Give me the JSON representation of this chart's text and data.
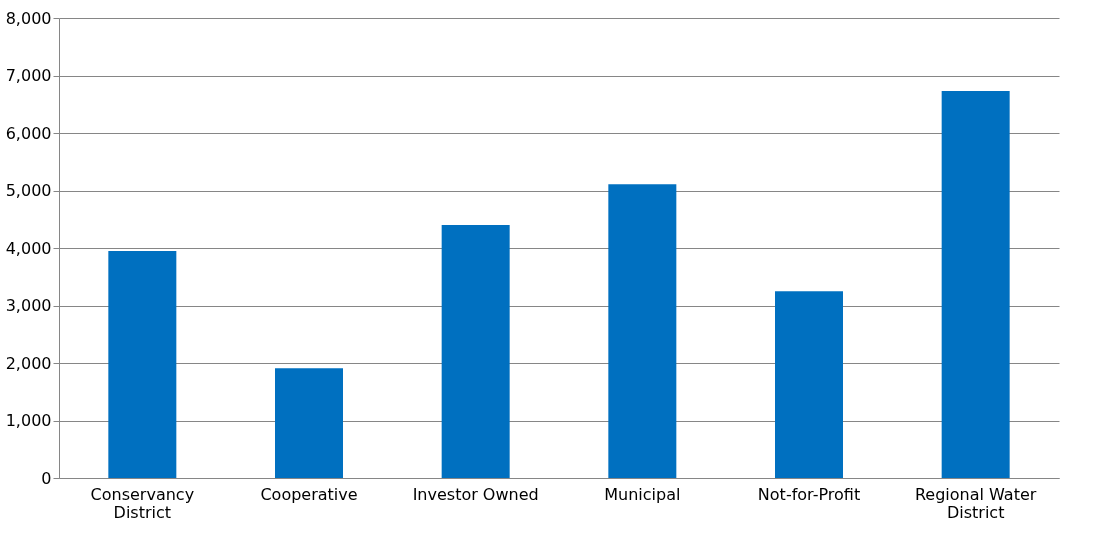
{
  "chart_data": {
    "type": "bar",
    "categories": [
      "Conservancy District",
      "Cooperative",
      "Investor Owned",
      "Municipal",
      "Not-for-Profit",
      "Regional Water District"
    ],
    "values": [
      3950,
      1910,
      4400,
      5110,
      3250,
      6730
    ],
    "color": "#0070c0",
    "ylim": [
      0,
      8000
    ],
    "yticks": [
      0,
      {
        "value": 1000,
        "label": "1,000"
      },
      {
        "value": 2000,
        "label": "2,000"
      },
      {
        "value": 3000,
        "label": "3,000"
      },
      {
        "value": 4000,
        "label": "4,000"
      },
      {
        "value": 5000,
        "label": "5,000"
      },
      {
        "value": 6000,
        "label": "6,000"
      },
      {
        "value": 7000,
        "label": "7,000"
      },
      {
        "value": 8000,
        "label": "8,000"
      }
    ],
    "grid": "y"
  }
}
